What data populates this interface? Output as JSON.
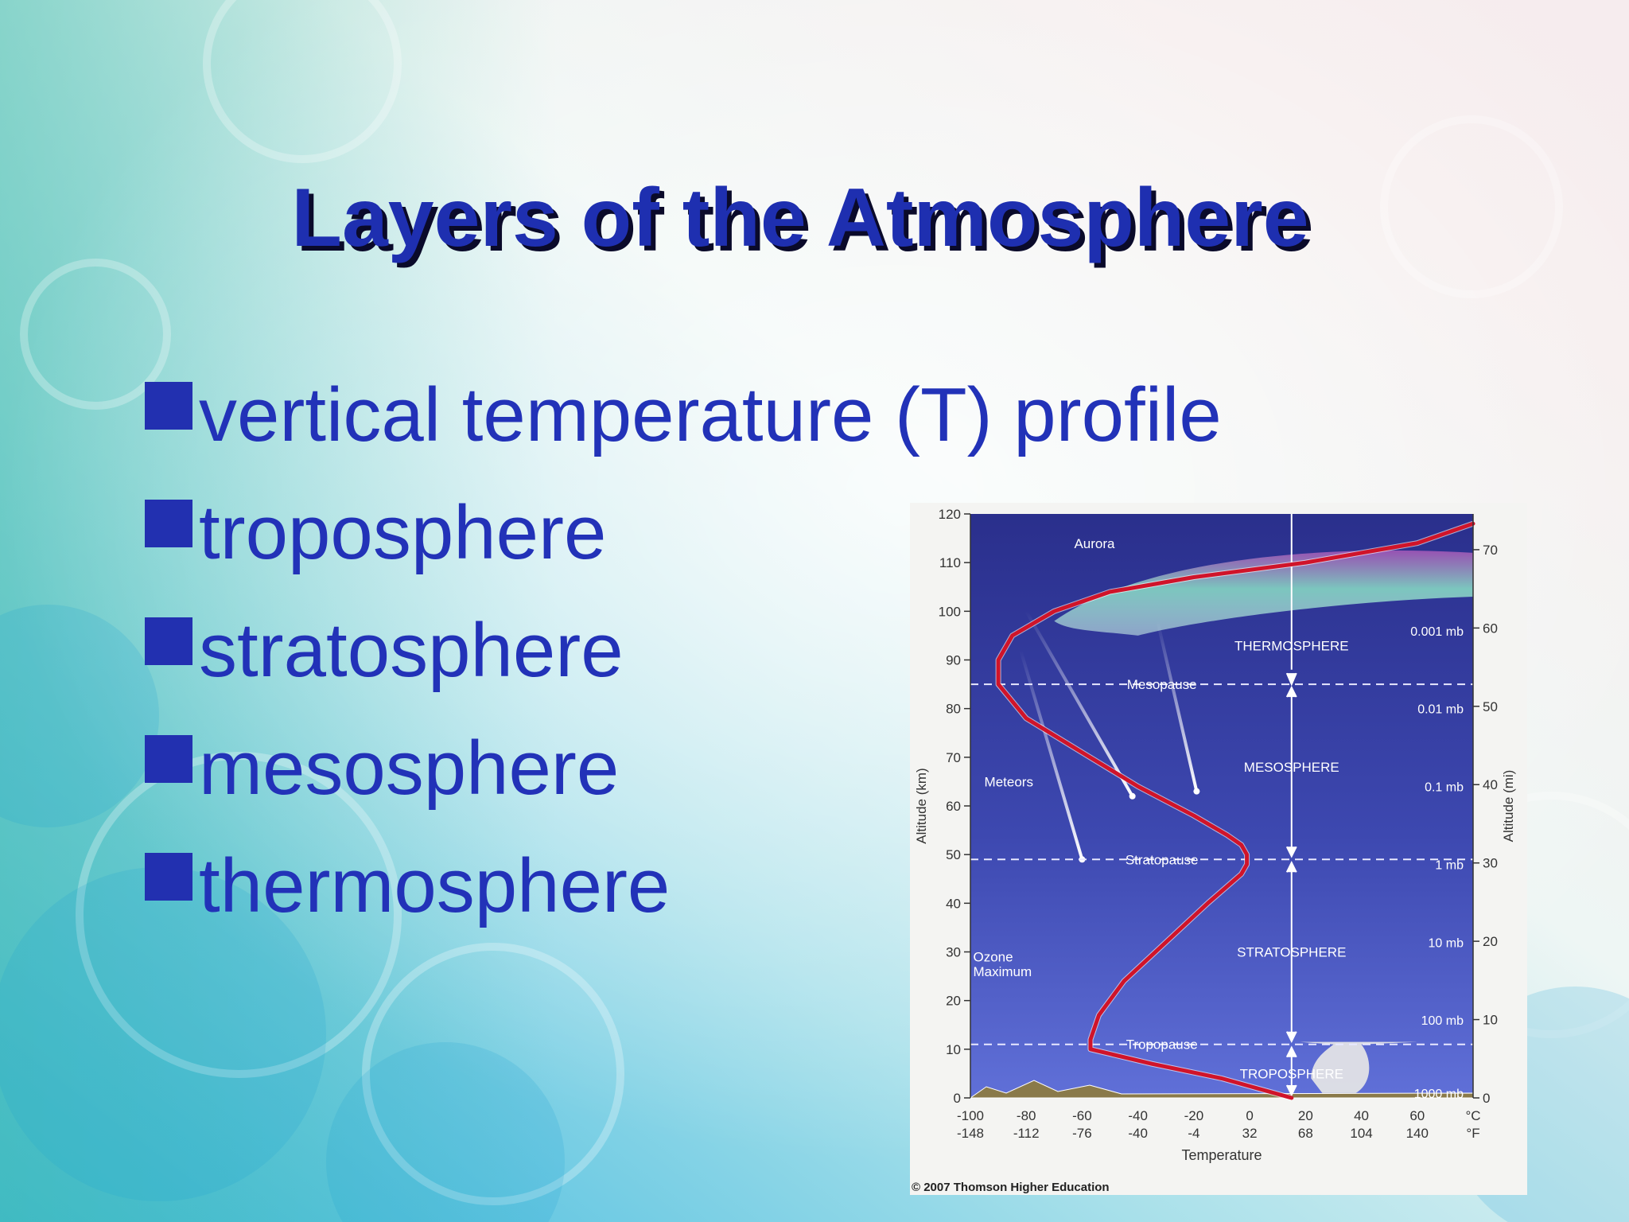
{
  "slide": {
    "title": "Layers of the Atmosphere",
    "bullets": [
      "vertical temperature (T) profile",
      "troposphere",
      "stratosphere",
      "mesosphere",
      "thermosphere"
    ],
    "colors": {
      "title": "#1e2fb0",
      "bullet": "#2232b8",
      "plot_bg_top": "#2a2f8c",
      "plot_bg_bottom": "#6070d8",
      "curve": "#d0142a"
    }
  },
  "chart_data": {
    "type": "line",
    "xlabel": "Temperature",
    "ylabel_left": "Altitude (km)",
    "ylabel_right": "Altitude (mi)",
    "x_unit_c": "°C",
    "x_unit_f": "°F",
    "xlim": [
      -100,
      80
    ],
    "ylim": [
      0,
      120
    ],
    "x_ticks_c": [
      "-100",
      "-80",
      "-60",
      "-40",
      "-20",
      "0",
      "20",
      "40",
      "60"
    ],
    "x_ticks_f": [
      "-148",
      "-112",
      "-76",
      "-40",
      "-4",
      "32",
      "68",
      "104",
      "140"
    ],
    "y_ticks_km": [
      "0",
      "10",
      "20",
      "30",
      "40",
      "50",
      "60",
      "70",
      "80",
      "90",
      "100",
      "110",
      "120"
    ],
    "y_ticks_mi": [
      "0",
      "10",
      "20",
      "30",
      "40",
      "50",
      "60",
      "70"
    ],
    "series": [
      {
        "x": [
          15,
          -10,
          -35,
          -57,
          -57,
          -54,
          -45,
          -30,
          -15,
          -3,
          -1,
          -1,
          -3,
          -8,
          -20,
          -40,
          -60,
          -80,
          -90,
          -90,
          -85,
          -70,
          -50,
          -20,
          20,
          60,
          80
        ],
        "y": [
          0,
          4,
          7,
          10,
          12,
          17,
          24,
          32,
          40,
          46,
          48,
          50,
          52,
          54,
          58,
          64,
          71,
          78,
          85,
          90,
          95,
          100,
          104,
          107,
          110,
          114,
          118
        ]
      }
    ],
    "boundaries": [
      {
        "label": "Tropopause",
        "km": 11
      },
      {
        "label": "Stratopause",
        "km": 49
      },
      {
        "label": "Mesopause",
        "km": 85
      }
    ],
    "layers": [
      {
        "label": "TROPOSPHERE",
        "km": 4
      },
      {
        "label": "STRATOSPHERE",
        "km": 29
      },
      {
        "label": "MESOSPHERE",
        "km": 67
      },
      {
        "label": "THERMOSPHERE",
        "km": 92
      }
    ],
    "pressure_labels": [
      {
        "label": "1000 mb",
        "km": 1
      },
      {
        "label": "100 mb",
        "km": 16
      },
      {
        "label": "10 mb",
        "km": 32
      },
      {
        "label": "1 mb",
        "km": 48
      },
      {
        "label": "0.1 mb",
        "km": 64
      },
      {
        "label": "0.01 mb",
        "km": 80
      },
      {
        "label": "0.001 mb",
        "km": 96
      }
    ],
    "annotations": {
      "aurora": "Aurora",
      "meteors": "Meteors",
      "ozone_line1": "Ozone",
      "ozone_line2": "Maximum"
    },
    "footnote": "© 2007 Thomson Higher Education"
  }
}
